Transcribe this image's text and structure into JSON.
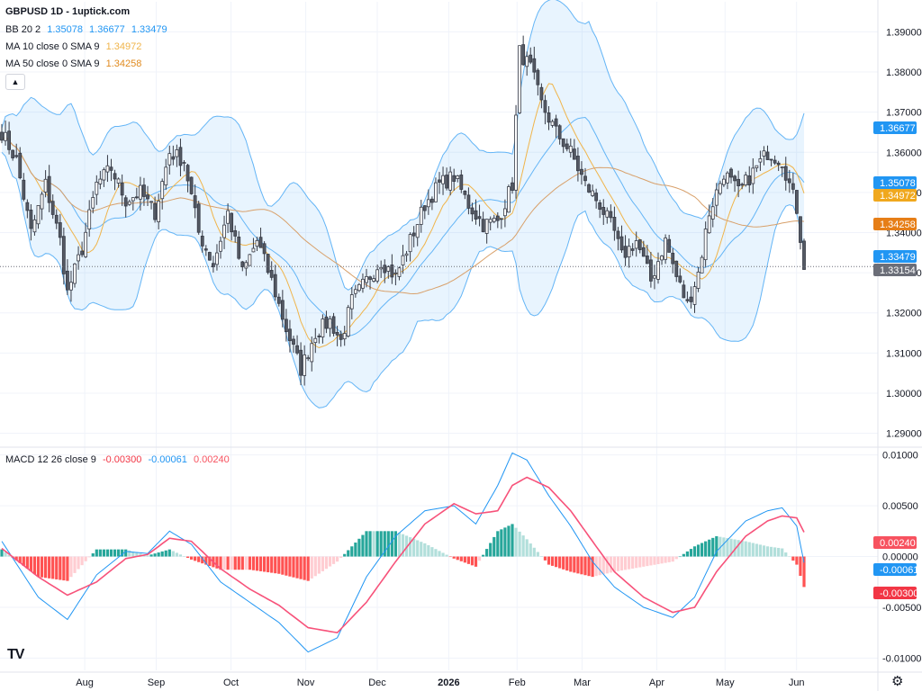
{
  "header": {
    "title": "GBPUSD 1D - 1uptick.com"
  },
  "legend": {
    "bb": {
      "label": "BB 20 2",
      "values": [
        "1.35078",
        "1.36677",
        "1.33479"
      ],
      "color": "#2196f3"
    },
    "ma10": {
      "label": "MA 10 close 0 SMA 9",
      "value": "1.34972",
      "color": "#f0b44a"
    },
    "ma50": {
      "label": "MA 50 close 0 SMA 9",
      "value": "1.34258",
      "color": "#e08a1e"
    },
    "macd": {
      "label": "MACD 12 26 close 9",
      "values": [
        "-0.00300",
        "-0.00061",
        "0.00240"
      ],
      "colors": [
        "#f23645",
        "#2196f3",
        "#f7525f"
      ]
    }
  },
  "chart_data": {
    "type": "candlestick",
    "price_axis": {
      "ticks": [
        "1.39000",
        "1.38000",
        "1.37000",
        "1.36000",
        "1.35000",
        "1.34000",
        "1.33000",
        "1.32000",
        "1.31000",
        "1.30000",
        "1.29000"
      ],
      "range": [
        1.287,
        1.393
      ]
    },
    "macd_axis": {
      "ticks": [
        "0.01000",
        "0.00500",
        "0.00000",
        "-0.00500",
        "-0.01000"
      ],
      "range": [
        -0.0112,
        0.0105
      ]
    },
    "time_axis": {
      "labels": [
        "Aug",
        "Sep",
        "Oct",
        "Nov",
        "Dec",
        "2026",
        "Feb",
        "Mar",
        "Apr",
        "May",
        "Jun"
      ],
      "label_positions": [
        10,
        32,
        55,
        78,
        100,
        122,
        143,
        163,
        186,
        207,
        229
      ]
    },
    "price_tags": [
      {
        "value": 1.36677,
        "text": "1.36677",
        "color": "#2196f3"
      },
      {
        "value": 1.35078,
        "text": "1.35078",
        "color": "#2196f3"
      },
      {
        "value": 1.34972,
        "text": "1.34972",
        "color": "#f0a81e"
      },
      {
        "value": 1.34258,
        "text": "1.34258",
        "color": "#e67e17"
      },
      {
        "value": 1.33479,
        "text": "1.33479",
        "color": "#2196f3"
      },
      {
        "value": 1.33154,
        "text": "1.33154",
        "color": "#6b6e78"
      }
    ],
    "macd_tags": [
      {
        "value": 0.0024,
        "text": "0.00240",
        "color": "#f7525f"
      },
      {
        "value": -0.00061,
        "text": "-0.00061",
        "color": "#2196f3"
      },
      {
        "value": -0.003,
        "text": "-0.00300",
        "color": "#f23645"
      }
    ],
    "close_anchors": [
      [
        0,
        1.365
      ],
      [
        4,
        1.358
      ],
      [
        8,
        1.34
      ],
      [
        12,
        1.352
      ],
      [
        16,
        1.338
      ],
      [
        18,
        1.325
      ],
      [
        22,
        1.336
      ],
      [
        26,
        1.352
      ],
      [
        30,
        1.356
      ],
      [
        34,
        1.348
      ],
      [
        38,
        1.35
      ],
      [
        42,
        1.345
      ],
      [
        46,
        1.36
      ],
      [
        50,
        1.358
      ],
      [
        54,
        1.34
      ],
      [
        58,
        1.332
      ],
      [
        62,
        1.345
      ],
      [
        66,
        1.33
      ],
      [
        70,
        1.338
      ],
      [
        74,
        1.328
      ],
      [
        78,
        1.316
      ],
      [
        82,
        1.306
      ],
      [
        86,
        1.315
      ],
      [
        90,
        1.318
      ],
      [
        93,
        1.313
      ],
      [
        96,
        1.323
      ],
      [
        100,
        1.328
      ],
      [
        104,
        1.333
      ],
      [
        108,
        1.329
      ],
      [
        112,
        1.338
      ],
      [
        116,
        1.347
      ],
      [
        120,
        1.352
      ],
      [
        124,
        1.354
      ],
      [
        128,
        1.347
      ],
      [
        132,
        1.342
      ],
      [
        136,
        1.343
      ],
      [
        140,
        1.352
      ],
      [
        142,
        1.385
      ],
      [
        145,
        1.381
      ],
      [
        148,
        1.372
      ],
      [
        152,
        1.365
      ],
      [
        156,
        1.36
      ],
      [
        160,
        1.352
      ],
      [
        164,
        1.347
      ],
      [
        168,
        1.34
      ],
      [
        170,
        1.334
      ],
      [
        174,
        1.338
      ],
      [
        178,
        1.328
      ],
      [
        182,
        1.338
      ],
      [
        185,
        1.329
      ],
      [
        188,
        1.322
      ],
      [
        191,
        1.33
      ],
      [
        194,
        1.345
      ],
      [
        198,
        1.355
      ],
      [
        202,
        1.35
      ],
      [
        206,
        1.355
      ],
      [
        210,
        1.36
      ],
      [
        214,
        1.358
      ],
      [
        218,
        1.346
      ],
      [
        220,
        1.332
      ]
    ],
    "macd_anchors": [
      [
        0,
        0.0015
      ],
      [
        10,
        -0.004
      ],
      [
        18,
        -0.0062
      ],
      [
        26,
        -0.0018
      ],
      [
        34,
        0.0005
      ],
      [
        40,
        0.0003
      ],
      [
        46,
        0.0025
      ],
      [
        52,
        0.0012
      ],
      [
        60,
        -0.0025
      ],
      [
        68,
        -0.0045
      ],
      [
        76,
        -0.0065
      ],
      [
        84,
        -0.0094
      ],
      [
        92,
        -0.008
      ],
      [
        100,
        -0.002
      ],
      [
        108,
        0.002
      ],
      [
        116,
        0.0045
      ],
      [
        124,
        0.005
      ],
      [
        130,
        0.0032
      ],
      [
        136,
        0.007
      ],
      [
        140,
        0.0102
      ],
      [
        144,
        0.0095
      ],
      [
        150,
        0.006
      ],
      [
        156,
        0.003
      ],
      [
        162,
        -0.0005
      ],
      [
        168,
        -0.003
      ],
      [
        176,
        -0.005
      ],
      [
        184,
        -0.006
      ],
      [
        190,
        -0.004
      ],
      [
        196,
        0.0005
      ],
      [
        204,
        0.0035
      ],
      [
        210,
        0.0045
      ],
      [
        214,
        0.0048
      ],
      [
        218,
        0.003
      ],
      [
        220,
        -0.0006
      ]
    ],
    "signal_anchors": [
      [
        0,
        0.0008
      ],
      [
        10,
        -0.002
      ],
      [
        18,
        -0.0038
      ],
      [
        26,
        -0.0025
      ],
      [
        34,
        -0.0002
      ],
      [
        40,
        0.0002
      ],
      [
        46,
        0.0018
      ],
      [
        52,
        0.0015
      ],
      [
        60,
        -0.0012
      ],
      [
        68,
        -0.0032
      ],
      [
        76,
        -0.0048
      ],
      [
        84,
        -0.007
      ],
      [
        92,
        -0.0075
      ],
      [
        100,
        -0.0045
      ],
      [
        108,
        -0.0005
      ],
      [
        116,
        0.0032
      ],
      [
        124,
        0.0052
      ],
      [
        130,
        0.0042
      ],
      [
        136,
        0.0045
      ],
      [
        140,
        0.007
      ],
      [
        144,
        0.0078
      ],
      [
        150,
        0.0068
      ],
      [
        156,
        0.0045
      ],
      [
        162,
        0.0015
      ],
      [
        168,
        -0.0015
      ],
      [
        176,
        -0.004
      ],
      [
        184,
        -0.0055
      ],
      [
        190,
        -0.005
      ],
      [
        196,
        -0.0015
      ],
      [
        204,
        0.002
      ],
      [
        210,
        0.0035
      ],
      [
        214,
        0.004
      ],
      [
        218,
        0.0038
      ],
      [
        220,
        0.0024
      ]
    ],
    "bar_count": 221,
    "seed": 7
  }
}
